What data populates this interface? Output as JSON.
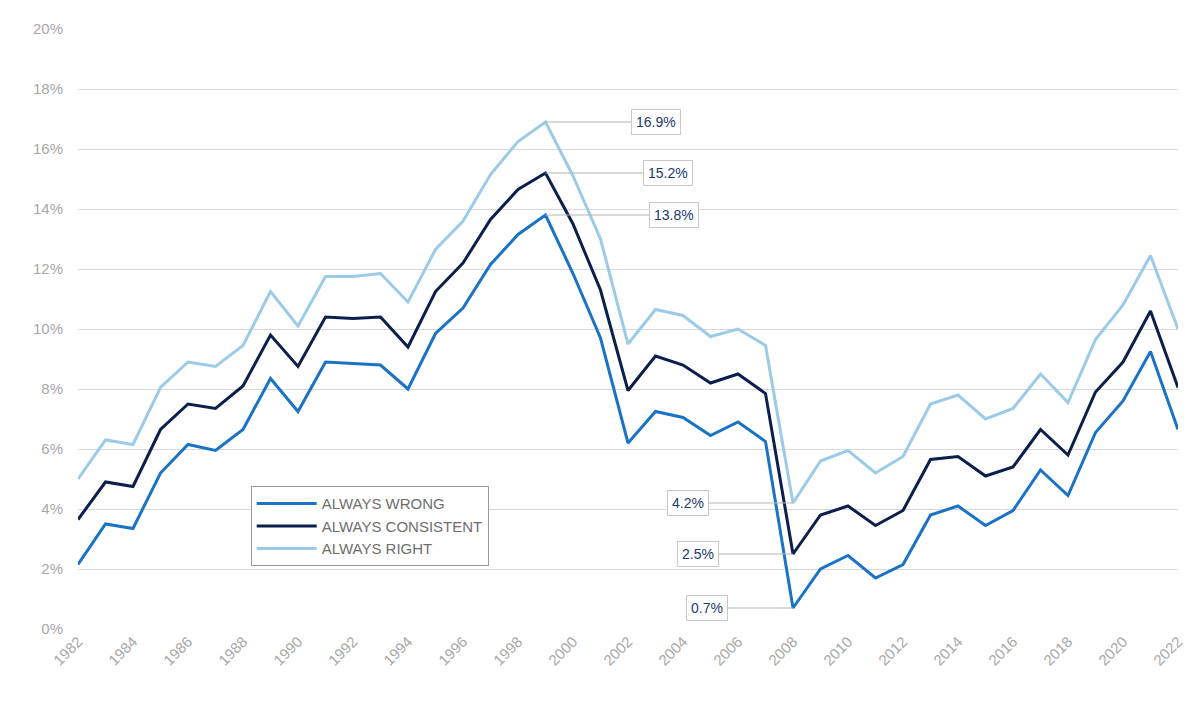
{
  "chart_data": {
    "type": "line",
    "x": [
      1982,
      1983,
      1984,
      1985,
      1986,
      1987,
      1988,
      1989,
      1990,
      1991,
      1992,
      1993,
      1994,
      1995,
      1996,
      1997,
      1998,
      1999,
      2000,
      2001,
      2002,
      2003,
      2004,
      2005,
      2006,
      2007,
      2008,
      2009,
      2010,
      2011,
      2012,
      2013,
      2014,
      2015,
      2016,
      2017,
      2018,
      2019,
      2020,
      2021,
      2022
    ],
    "series": [
      {
        "name": "ALWAYS WRONG",
        "color": "#1a73c4",
        "values": [
          2.15,
          3.5,
          3.35,
          5.2,
          6.15,
          5.95,
          6.65,
          8.35,
          7.25,
          8.9,
          8.85,
          8.8,
          8.0,
          9.85,
          10.7,
          12.15,
          13.15,
          13.8,
          11.85,
          9.7,
          6.2,
          7.25,
          7.05,
          6.45,
          6.9,
          6.25,
          0.7,
          2.0,
          2.45,
          1.7,
          2.15,
          3.8,
          4.1,
          3.45,
          3.95,
          5.3,
          4.45,
          6.55,
          7.6,
          9.25,
          6.65
        ]
      },
      {
        "name": "ALWAYS CONSISTENT",
        "color": "#0b1f4d",
        "values": [
          3.65,
          4.9,
          4.75,
          6.65,
          7.5,
          7.35,
          8.1,
          9.8,
          8.75,
          10.4,
          10.35,
          10.4,
          9.4,
          11.25,
          12.2,
          13.65,
          14.65,
          15.2,
          13.5,
          11.3,
          7.95,
          9.1,
          8.8,
          8.2,
          8.5,
          7.85,
          2.5,
          3.8,
          4.1,
          3.45,
          3.95,
          5.65,
          5.75,
          5.1,
          5.4,
          6.65,
          5.8,
          7.9,
          8.9,
          10.6,
          8.05
        ]
      },
      {
        "name": "ALWAYS RIGHT",
        "color": "#9ccbe8",
        "values": [
          5.0,
          6.3,
          6.15,
          8.05,
          8.9,
          8.75,
          9.45,
          11.25,
          10.1,
          11.75,
          11.75,
          11.85,
          10.9,
          12.65,
          13.6,
          15.15,
          16.25,
          16.9,
          15.1,
          13.0,
          9.5,
          10.65,
          10.45,
          9.75,
          10.0,
          9.45,
          4.2,
          5.6,
          5.95,
          5.2,
          5.75,
          7.5,
          7.8,
          7.0,
          7.35,
          8.5,
          7.55,
          9.65,
          10.8,
          12.45,
          10.0
        ]
      }
    ],
    "xlim": [
      1982,
      2022
    ],
    "xticks": [
      1982,
      1984,
      1986,
      1988,
      1990,
      1992,
      1994,
      1996,
      1998,
      2000,
      2002,
      2004,
      2006,
      2008,
      2010,
      2012,
      2014,
      2016,
      2018,
      2020,
      2022
    ],
    "ylim": [
      0,
      20
    ],
    "yticks": [
      {
        "value": 0,
        "label": "0%"
      },
      {
        "value": 2,
        "label": "2%"
      },
      {
        "value": 4,
        "label": "4%"
      },
      {
        "value": 6,
        "label": "6%"
      },
      {
        "value": 8,
        "label": "8%"
      },
      {
        "value": 10,
        "label": "10%"
      },
      {
        "value": 12,
        "label": "12%"
      },
      {
        "value": 14,
        "label": "14%"
      },
      {
        "value": 16,
        "label": "16%"
      },
      {
        "value": 18,
        "label": "18%"
      },
      {
        "value": 20,
        "label": "20%"
      }
    ],
    "grid": true,
    "legend": "lower left",
    "annotations": [
      {
        "x": 1999,
        "y": 16.9,
        "text": "16.9%"
      },
      {
        "x": 1999,
        "y": 15.2,
        "text": "15.2%"
      },
      {
        "x": 1999,
        "y": 13.8,
        "text": "13.8%"
      },
      {
        "x": 2008,
        "y": 4.2,
        "text": "4.2%"
      },
      {
        "x": 2008,
        "y": 2.5,
        "text": "2.5%"
      },
      {
        "x": 2008,
        "y": 0.7,
        "text": "0.7%"
      }
    ]
  }
}
